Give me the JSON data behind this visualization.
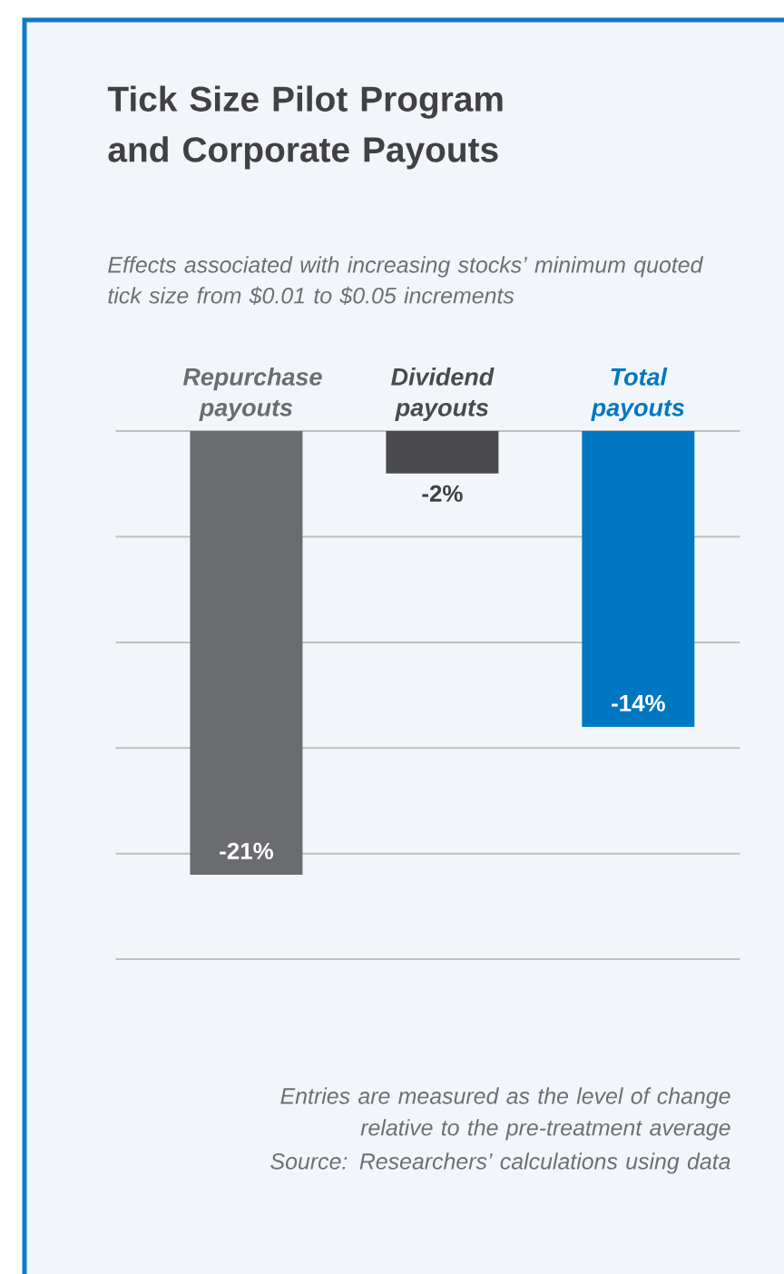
{
  "chart_data": {
    "type": "bar",
    "title": "Tick Size Pilot Program and Corporate Payouts",
    "subtitle": "Effects associated with increasing stocks’ minimum quoted tick size from $0.01 to $0.05 increments",
    "categories": [
      "Repurchase payouts",
      "Dividend payouts",
      "Total payouts"
    ],
    "values": [
      -21,
      -2,
      -14
    ],
    "value_labels": [
      "-21%",
      "-2%",
      "-14%"
    ],
    "colors": [
      "#6b6c70",
      "#4a4a4d",
      "#0077c2"
    ],
    "ylim": [
      -25,
      0
    ],
    "yticks": [
      {
        "value": -25,
        "label": null
      },
      {
        "value": -20,
        "label": null
      },
      {
        "value": -15,
        "label": null
      },
      {
        "value": -10,
        "label": null
      },
      {
        "value": -5,
        "label": null
      },
      {
        "value": 0,
        "label": null
      }
    ],
    "grid": "y",
    "annotations": [
      "Entries are measured as the level of change relative to the pre-treatment average",
      "Source: Researchers’ calculations using data"
    ]
  }
}
